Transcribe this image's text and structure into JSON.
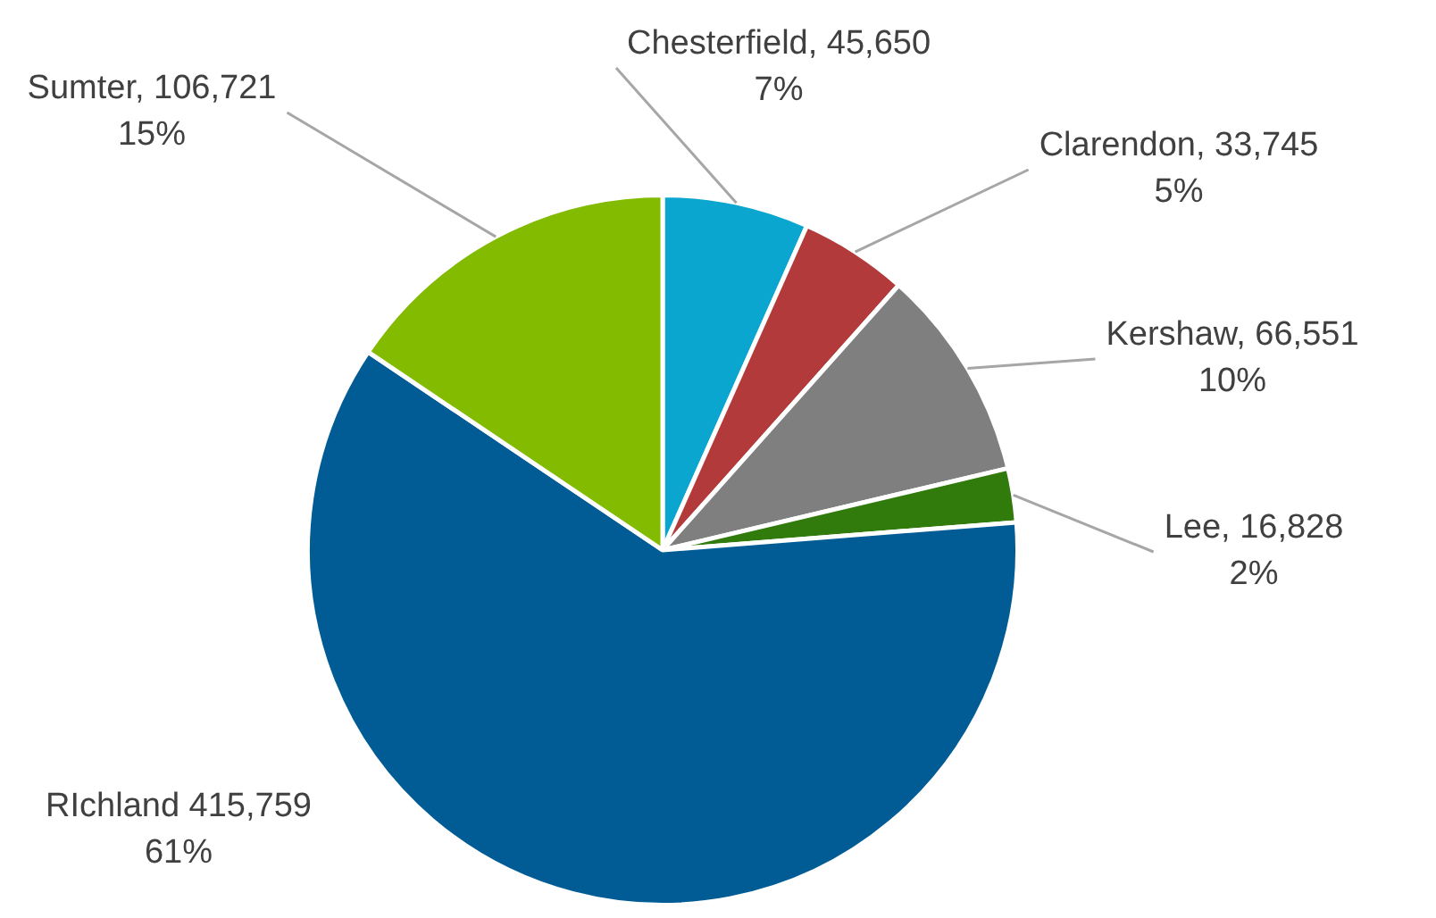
{
  "chart_data": {
    "type": "pie",
    "categories": [
      "Chesterfield",
      "Clarendon",
      "Kershaw",
      "Lee",
      "RIchland",
      "Sumter"
    ],
    "values": [
      45650,
      33745,
      66551,
      16828,
      415759,
      106721
    ],
    "colors": [
      "#0aa6cf",
      "#b33a3a",
      "#7f7f7f",
      "#317a0c",
      "#015c96",
      "#82bb00"
    ],
    "value_labels": [
      ", 45,650\n7%",
      ", 33,745\n5%",
      ", 66,551\n10%",
      ", 16,828\n2%",
      " 415,759\n61%",
      ", 106,721\n15%"
    ],
    "legend": false
  }
}
